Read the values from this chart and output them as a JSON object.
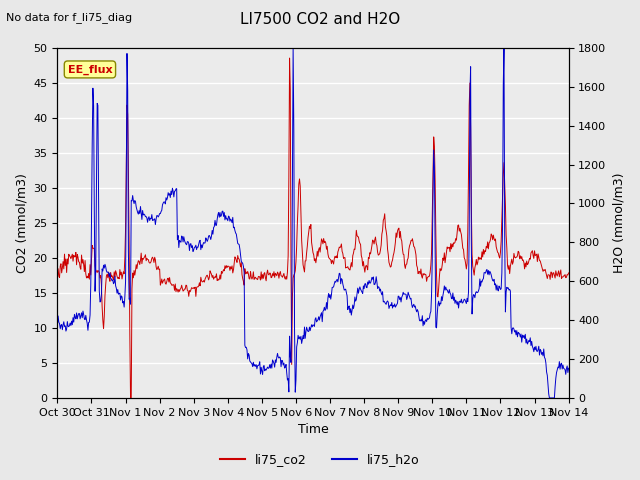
{
  "title": "LI7500 CO2 and H2O",
  "subtitle": "No data for f_li75_diag",
  "xlabel": "Time",
  "ylabel_left": "CO2 (mmol/m3)",
  "ylabel_right": "H2O (mmol/m3)",
  "ylim_left": [
    0,
    50
  ],
  "ylim_right": [
    0,
    1800
  ],
  "yticks_left": [
    0,
    5,
    10,
    15,
    20,
    25,
    30,
    35,
    40,
    45,
    50
  ],
  "yticks_right": [
    0,
    200,
    400,
    600,
    800,
    1000,
    1200,
    1400,
    1600,
    1800
  ],
  "xtick_labels": [
    "Oct 30",
    "Oct 31",
    "Nov 1",
    "Nov 2",
    "Nov 3",
    "Nov 4",
    "Nov 5",
    "Nov 6",
    "Nov 7",
    "Nov 8",
    "Nov 9",
    "Nov 10",
    "Nov 11",
    "Nov 12",
    "Nov 13",
    "Nov 14"
  ],
  "co2_color": "#cc0000",
  "h2o_color": "#0000cc",
  "bg_color": "#e8e8e8",
  "plot_bg_color": "#ebebeb",
  "grid_color": "#ffffff",
  "legend_label_co2": "li75_co2",
  "legend_label_h2o": "li75_h2o",
  "ee_flux_box_color": "#ffff99",
  "ee_flux_text_color": "#cc0000",
  "linewidth": 0.7
}
